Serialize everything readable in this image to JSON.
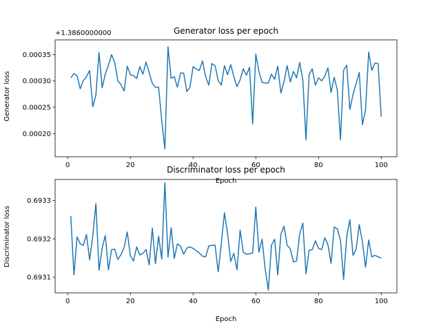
{
  "figure": {
    "background": "#ffffff"
  },
  "chart_data": [
    {
      "type": "line",
      "title": "Generator loss per epoch",
      "xlabel": "Epoch",
      "ylabel": "Generator loss",
      "offset_text": "+1.3860000000",
      "color": "#1f77b4",
      "xlim": [
        -4,
        105
      ],
      "ylim": [
        0.000156,
        0.000378
      ],
      "xticks": [
        0,
        20,
        40,
        60,
        80,
        100
      ],
      "xtick_labels": [
        "0",
        "20",
        "40",
        "60",
        "80",
        "100"
      ],
      "yticks": [
        0.0002,
        0.00025,
        0.0003,
        0.00035
      ],
      "ytick_labels": [
        "0.00020",
        "0.00025",
        "0.00030",
        "0.00035"
      ],
      "grid": false,
      "x_start": 1,
      "values": [
        0.000306,
        0.000314,
        0.00031,
        0.000285,
        0.000301,
        0.000308,
        0.00032,
        0.000251,
        0.000273,
        0.000354,
        0.000287,
        0.000313,
        0.00033,
        0.00035,
        0.000335,
        0.0003,
        0.000293,
        0.000281,
        0.000328,
        0.000312,
        0.00031,
        0.000305,
        0.000327,
        0.000313,
        0.000336,
        0.000316,
        0.000295,
        0.000288,
        0.000288,
        0.000225,
        0.000171,
        0.000365,
        0.000305,
        0.000308,
        0.000288,
        0.000315,
        0.000315,
        0.00028,
        0.000288,
        0.000327,
        0.000323,
        0.00032,
        0.000338,
        0.000308,
        0.000292,
        0.000333,
        0.000329,
        0.000301,
        0.000292,
        0.000329,
        0.000312,
        0.000331,
        0.000308,
        0.000289,
        0.000302,
        0.000323,
        0.000311,
        0.000326,
        0.000218,
        0.000351,
        0.000318,
        0.000297,
        0.000296,
        0.000296,
        0.000313,
        0.000303,
        0.000328,
        0.000277,
        0.000299,
        0.000329,
        0.000298,
        0.000318,
        0.000306,
        0.000335,
        0.000302,
        0.000188,
        0.000312,
        0.000323,
        0.000292,
        0.000306,
        0.0003,
        0.000309,
        0.000325,
        0.000278,
        0.000307,
        0.000283,
        0.000188,
        0.00032,
        0.00033,
        0.000246,
        0.000274,
        0.000295,
        0.000316,
        0.000217,
        0.000245,
        0.000355,
        0.00032,
        0.000334,
        0.000333,
        0.000232
      ]
    },
    {
      "type": "line",
      "title": "Discriminator loss per epoch",
      "xlabel": "Epoch",
      "ylabel": "Discriminator loss",
      "color": "#1f77b4",
      "xlim": [
        -4,
        105
      ],
      "ylim": [
        0.693059,
        0.693355
      ],
      "xticks": [
        0,
        20,
        40,
        60,
        80,
        100
      ],
      "xtick_labels": [
        "0",
        "20",
        "40",
        "60",
        "80",
        "100"
      ],
      "yticks": [
        0.6931,
        0.6932,
        0.6933
      ],
      "ytick_labels": [
        "0.6931",
        "0.6932",
        "0.6933"
      ],
      "grid": false,
      "x_start": 1,
      "values": [
        0.69326,
        0.693106,
        0.693205,
        0.693187,
        0.693183,
        0.693211,
        0.693145,
        0.693207,
        0.693292,
        0.693118,
        0.693176,
        0.693209,
        0.693119,
        0.693172,
        0.693173,
        0.693146,
        0.693159,
        0.693177,
        0.693218,
        0.693156,
        0.693142,
        0.693179,
        0.693158,
        0.693162,
        0.693172,
        0.693132,
        0.693228,
        0.693135,
        0.693207,
        0.693147,
        0.693347,
        0.693152,
        0.693229,
        0.693149,
        0.693187,
        0.693181,
        0.69316,
        0.693176,
        0.693179,
        0.693175,
        0.693169,
        0.693163,
        0.693155,
        0.693153,
        0.693181,
        0.693183,
        0.693184,
        0.693114,
        0.693188,
        0.693268,
        0.693214,
        0.693141,
        0.693162,
        0.693119,
        0.693223,
        0.693165,
        0.69316,
        0.693161,
        0.693163,
        0.693283,
        0.693165,
        0.693199,
        0.693121,
        0.693066,
        0.693184,
        0.693199,
        0.693106,
        0.693212,
        0.693233,
        0.693183,
        0.693174,
        0.69314,
        0.693142,
        0.693213,
        0.693241,
        0.693109,
        0.69317,
        0.693172,
        0.693195,
        0.693175,
        0.693172,
        0.693203,
        0.693185,
        0.693136,
        0.693231,
        0.693226,
        0.693196,
        0.693094,
        0.693206,
        0.69325,
        0.693157,
        0.693173,
        0.693237,
        0.693192,
        0.693126,
        0.693197,
        0.693153,
        0.693157,
        0.693153,
        0.69315
      ]
    }
  ]
}
